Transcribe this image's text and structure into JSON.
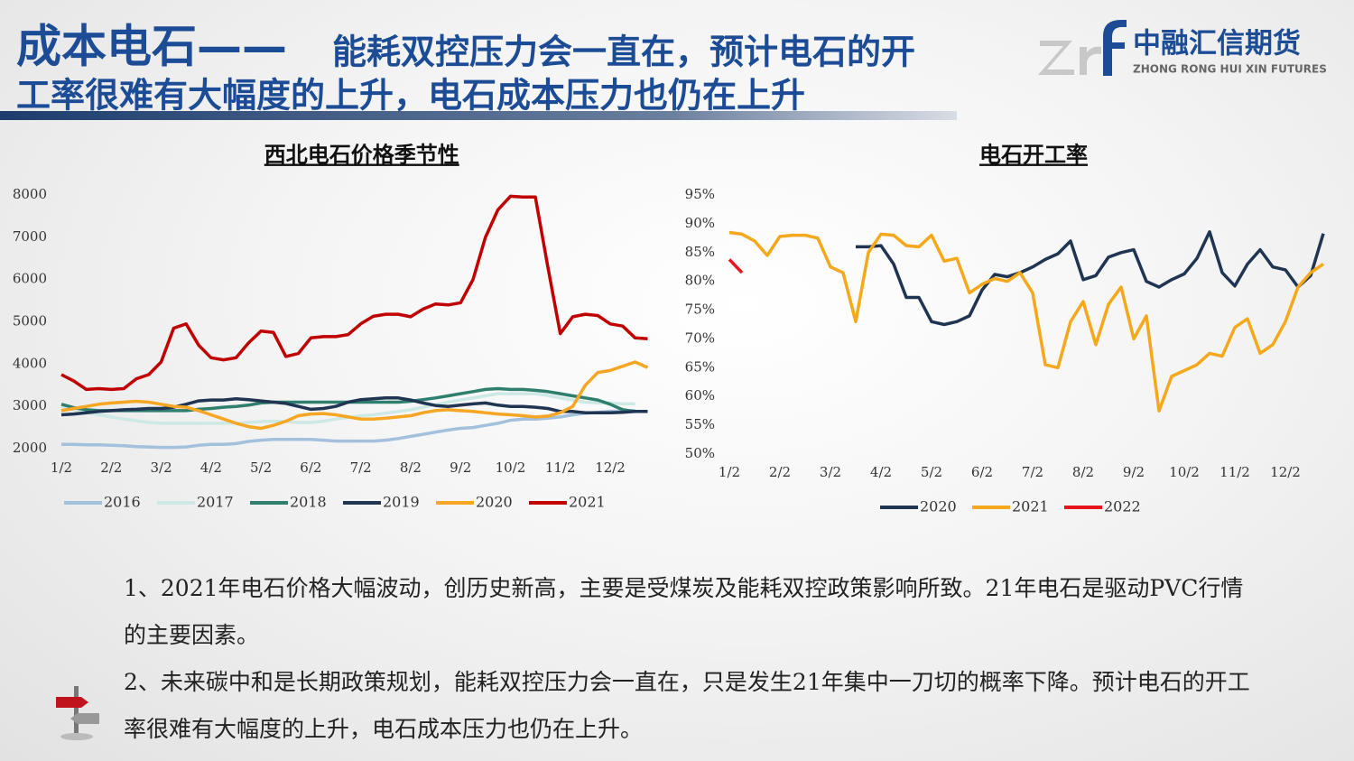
{
  "header": {
    "title_lead": "成本电石——",
    "title_line1": "能耗双控压力会一直在，预计电石的开",
    "title_line2": "工率很难有大幅度的上升，电石成本压力也仍在上升",
    "company_cn": "中融汇信期货",
    "company_en": "ZHONG RONG HUI XIN FUTURES"
  },
  "chart_data": [
    {
      "type": "line",
      "title": "西北电石价格季节性",
      "categories": [
        "1/2",
        null,
        null,
        null,
        "2/2",
        null,
        null,
        null,
        "3/2",
        null,
        null,
        null,
        "4/2",
        null,
        null,
        null,
        "5/2",
        null,
        null,
        null,
        "6/2",
        null,
        null,
        null,
        "7/2",
        null,
        null,
        null,
        "8/2",
        null,
        null,
        null,
        "9/2",
        null,
        null,
        null,
        "10/2",
        null,
        null,
        null,
        "11/2",
        null,
        null,
        null,
        "12/2",
        null,
        null,
        null
      ],
      "ylim": [
        2000,
        8000
      ],
      "yticks": [
        2000,
        3000,
        4000,
        5000,
        6000,
        7000,
        8000
      ],
      "grid": false,
      "legend": "bottom",
      "series": [
        {
          "name": "2016",
          "color": "#a3c0dc",
          "values": [
            2100,
            2100,
            2090,
            2090,
            2080,
            2070,
            2050,
            2040,
            2030,
            2030,
            2040,
            2080,
            2100,
            2100,
            2120,
            2170,
            2200,
            2220,
            2220,
            2220,
            2220,
            2200,
            2180,
            2180,
            2180,
            2180,
            2200,
            2240,
            2290,
            2340,
            2390,
            2440,
            2480,
            2500,
            2550,
            2600,
            2670,
            2700,
            2700,
            2720,
            2750,
            2800,
            2840,
            2860,
            2880,
            2890,
            2900,
            null
          ]
        },
        {
          "name": "2017",
          "color": "#cde9e5",
          "values": [
            3000,
            2920,
            2860,
            2800,
            2750,
            2700,
            2660,
            2620,
            2600,
            2600,
            2600,
            2600,
            2600,
            2600,
            2600,
            2620,
            2640,
            2650,
            2640,
            2620,
            2620,
            2650,
            2700,
            2740,
            2780,
            2800,
            2840,
            2880,
            2920,
            2980,
            3040,
            3100,
            3150,
            3200,
            3250,
            3300,
            3300,
            3300,
            3300,
            3260,
            3200,
            3150,
            3100,
            3080,
            3080,
            3060,
            3060,
            null
          ]
        },
        {
          "name": "2018",
          "color": "#2f7f6f",
          "values": [
            3050,
            2970,
            2920,
            2900,
            2900,
            2900,
            2900,
            2900,
            2900,
            2900,
            2900,
            2930,
            2950,
            2980,
            3000,
            3030,
            3080,
            3100,
            3100,
            3100,
            3100,
            3100,
            3100,
            3100,
            3100,
            3100,
            3100,
            3100,
            3120,
            3160,
            3200,
            3250,
            3300,
            3350,
            3400,
            3420,
            3400,
            3400,
            3380,
            3350,
            3300,
            3250,
            3200,
            3150,
            3050,
            2920,
            2880,
            null
          ]
        },
        {
          "name": "2019",
          "color": "#1f3552",
          "values": [
            2800,
            2820,
            2850,
            2880,
            2900,
            2920,
            2930,
            2950,
            2950,
            2980,
            3050,
            3130,
            3150,
            3150,
            3180,
            3160,
            3130,
            3100,
            3070,
            3000,
            2930,
            2950,
            3000,
            3100,
            3160,
            3180,
            3200,
            3200,
            3150,
            3080,
            3020,
            3000,
            3030,
            3060,
            3080,
            3030,
            3000,
            3000,
            2980,
            2950,
            2880,
            2880,
            2850,
            2850,
            2850,
            2860,
            2880,
            2880
          ]
        },
        {
          "name": "2020",
          "color": "#f6a623",
          "values": [
            2900,
            2950,
            3000,
            3050,
            3080,
            3100,
            3120,
            3100,
            3050,
            3000,
            2980,
            2900,
            2800,
            2700,
            2600,
            2520,
            2480,
            2550,
            2650,
            2780,
            2820,
            2830,
            2800,
            2750,
            2700,
            2700,
            2720,
            2750,
            2780,
            2850,
            2900,
            2920,
            2900,
            2880,
            2850,
            2820,
            2800,
            2780,
            2750,
            2770,
            2850,
            3000,
            3500,
            3800,
            3850,
            3950,
            4050,
            3920
          ]
        },
        {
          "name": "2021",
          "color": "#c00000",
          "values": [
            3750,
            3600,
            3400,
            3420,
            3400,
            3420,
            3650,
            3750,
            4050,
            4850,
            4950,
            4450,
            4150,
            4100,
            4150,
            4500,
            4780,
            4750,
            4180,
            4250,
            4620,
            4650,
            4650,
            4700,
            4950,
            5130,
            5180,
            5180,
            5120,
            5300,
            5420,
            5400,
            5450,
            6000,
            7000,
            7650,
            7970,
            7950,
            7950,
            6300,
            4720,
            5120,
            5180,
            5150,
            4950,
            4900,
            4620,
            4600
          ]
        }
      ]
    },
    {
      "type": "line",
      "title": "电石开工率",
      "categories": [
        "1/2",
        null,
        null,
        null,
        "2/2",
        null,
        null,
        null,
        "3/2",
        null,
        null,
        null,
        "4/2",
        null,
        null,
        null,
        "5/2",
        null,
        null,
        null,
        "6/2",
        null,
        null,
        null,
        "7/2",
        null,
        null,
        null,
        "8/2",
        null,
        null,
        null,
        "9/2",
        null,
        null,
        null,
        "10/2",
        null,
        null,
        null,
        "11/2",
        null,
        null,
        null,
        "12/2",
        null,
        null,
        null
      ],
      "ylim": [
        50,
        95
      ],
      "yticks": [
        {
          "value": 50,
          "label": "50%"
        },
        {
          "value": 55,
          "label": "55%"
        },
        {
          "value": 60,
          "label": "60%"
        },
        {
          "value": 65,
          "label": "65%"
        },
        {
          "value": 70,
          "label": "70%"
        },
        {
          "value": 75,
          "label": "75%"
        },
        {
          "value": 80,
          "label": "80%"
        },
        {
          "value": 85,
          "label": "85%"
        },
        {
          "value": 90,
          "label": "90%"
        },
        {
          "value": 95,
          "label": "95%"
        }
      ],
      "grid": false,
      "legend": "bottom",
      "series": [
        {
          "name": "2020",
          "color": "#1f3552",
          "values": [
            null,
            null,
            null,
            null,
            null,
            null,
            null,
            null,
            null,
            null,
            86,
            86,
            86.2,
            83,
            77.2,
            77.2,
            73,
            72.5,
            73,
            74,
            78.5,
            81.2,
            80.8,
            81.5,
            82.5,
            83.8,
            84.8,
            87,
            80.3,
            81,
            84.2,
            85,
            85.5,
            80,
            79,
            80.3,
            81.3,
            84,
            88.6,
            81.5,
            79.2,
            83,
            85.5,
            82.5,
            82,
            79,
            81,
            88.3
          ]
        },
        {
          "name": "2021",
          "color": "#f6a81c",
          "values": [
            88.5,
            88.2,
            87,
            84.5,
            87.8,
            88,
            88,
            87.5,
            82.5,
            81.5,
            73,
            85,
            88.2,
            88,
            86.2,
            86,
            88,
            83.5,
            84,
            78,
            79.5,
            80.5,
            80,
            81.5,
            78,
            65.5,
            65,
            73,
            76.5,
            69,
            76,
            79,
            70,
            74,
            57.5,
            63.5,
            64.5,
            65.5,
            67.5,
            67,
            72,
            73.5,
            67.5,
            69,
            73,
            79,
            81.5,
            83
          ]
        },
        {
          "name": "2022",
          "color": "#e8141c",
          "values": [
            83.8,
            81.5,
            null,
            null,
            null,
            null,
            null,
            null,
            null,
            null,
            null,
            null,
            null,
            null,
            null,
            null,
            null,
            null,
            null,
            null,
            null,
            null,
            null,
            null,
            null,
            null,
            null,
            null,
            null,
            null,
            null,
            null,
            null,
            null,
            null,
            null,
            null,
            null,
            null,
            null,
            null,
            null,
            null,
            null,
            null,
            null,
            null,
            null
          ]
        }
      ]
    }
  ],
  "notes": [
    "1、2021年电石价格大幅波动，创历史新高，主要是受煤炭及能耗双控政策影响所致。21年电石是驱动PVC行情的主要因素。",
    "2、未来碳中和是长期政策规划，能耗双控压力会一直在，只是发生21年集中一刀切的概率下降。预计电石的开工率很难有大幅度的上升，电石成本压力也仍在上升。"
  ]
}
